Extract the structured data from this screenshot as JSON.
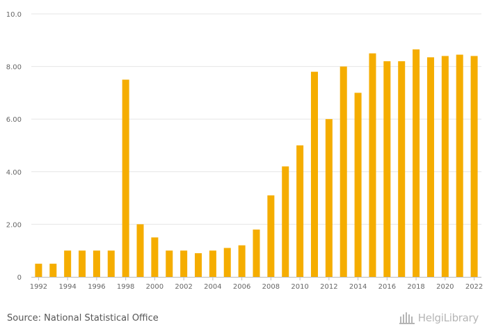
{
  "chart_data": {
    "type": "bar",
    "categories": [
      "1992",
      "1993",
      "1994",
      "1995",
      "1996",
      "1997",
      "1998",
      "1999",
      "2000",
      "2001",
      "2002",
      "2003",
      "2004",
      "2005",
      "2006",
      "2007",
      "2008",
      "2009",
      "2010",
      "2011",
      "2012",
      "2013",
      "2014",
      "2015",
      "2016",
      "2017",
      "2018",
      "2019",
      "2020",
      "2021",
      "2022"
    ],
    "values": [
      0.5,
      0.5,
      1.0,
      1.0,
      1.0,
      1.0,
      7.5,
      2.0,
      1.5,
      1.0,
      1.0,
      0.9,
      1.0,
      1.1,
      1.2,
      1.8,
      3.1,
      4.2,
      5.0,
      7.8,
      6.0,
      8.0,
      7.0,
      8.5,
      8.2,
      8.2,
      8.65,
      8.35,
      8.4,
      8.45,
      8.4
    ],
    "x_tick_labels": [
      "1992",
      "1994",
      "1996",
      "1998",
      "2000",
      "2002",
      "2004",
      "2006",
      "2008",
      "2010",
      "2012",
      "2014",
      "2016",
      "2018",
      "2020",
      "2022"
    ],
    "y_tick_labels": [
      "0",
      "2.00",
      "4.00",
      "6.00",
      "8.00",
      "10.0"
    ],
    "y_ticks": [
      0,
      2,
      4,
      6,
      8,
      10
    ],
    "ylim": [
      0,
      10
    ],
    "title": "",
    "xlabel": "",
    "ylabel": "",
    "grid": true,
    "bar_color": "#f5ad00"
  },
  "footer": {
    "source": "Source: National Statistical Office",
    "brand": "HelgiLibrary"
  }
}
